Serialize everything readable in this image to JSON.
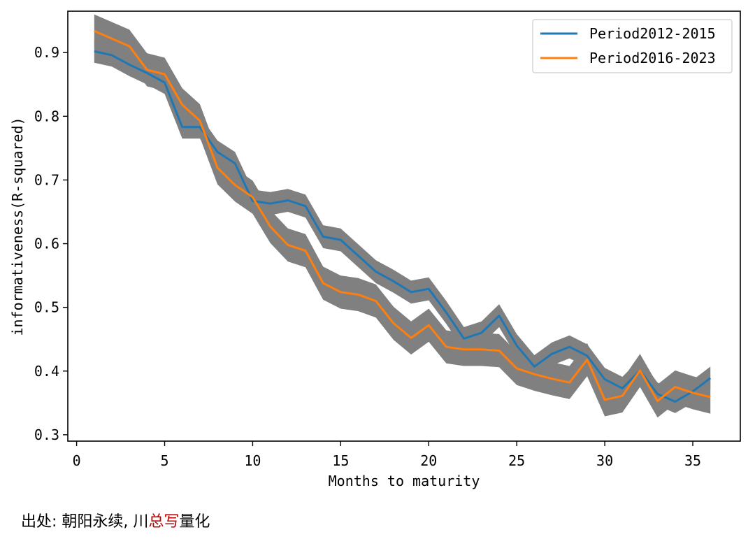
{
  "chart_data": {
    "type": "line",
    "xlabel": "Months to maturity",
    "ylabel": "informativeness(R-squared)",
    "xlim": [
      -0.5,
      37.7
    ],
    "ylim": [
      0.29,
      0.965
    ],
    "xticks": [
      0,
      5,
      10,
      15,
      20,
      25,
      30,
      35
    ],
    "yticks": [
      0.3,
      0.4,
      0.5,
      0.6,
      0.7,
      0.8,
      0.9
    ],
    "grid": false,
    "legend_position": "top-right",
    "band_color": "#808080",
    "series": [
      {
        "name": "Period2012-2015",
        "color": "#1f77b4",
        "x": [
          1,
          2,
          3,
          4,
          5,
          6,
          7,
          8,
          9,
          10,
          11,
          12,
          13,
          14,
          15,
          16,
          17,
          18,
          19,
          20,
          21,
          22,
          23,
          24,
          25,
          26,
          27,
          28,
          29,
          30,
          31,
          32,
          33,
          34,
          35,
          36
        ],
        "values": [
          0.902,
          0.896,
          0.881,
          0.868,
          0.853,
          0.783,
          0.783,
          0.744,
          0.726,
          0.667,
          0.663,
          0.668,
          0.659,
          0.611,
          0.606,
          0.581,
          0.556,
          0.541,
          0.524,
          0.529,
          0.492,
          0.451,
          0.46,
          0.487,
          0.44,
          0.407,
          0.427,
          0.438,
          0.424,
          0.387,
          0.373,
          0.401,
          0.364,
          0.352,
          0.368,
          0.389
        ],
        "band": 0.018
      },
      {
        "name": "Period2016-2023",
        "color": "#ff7f0e",
        "x": [
          1,
          2,
          3,
          4,
          5,
          6,
          7,
          8,
          9,
          10,
          11,
          12,
          13,
          14,
          15,
          16,
          17,
          18,
          19,
          20,
          21,
          22,
          23,
          24,
          25,
          26,
          27,
          28,
          29,
          30,
          31,
          32,
          33,
          34,
          35,
          36
        ],
        "values": [
          0.934,
          0.922,
          0.91,
          0.873,
          0.866,
          0.818,
          0.793,
          0.719,
          0.692,
          0.673,
          0.627,
          0.598,
          0.589,
          0.538,
          0.524,
          0.52,
          0.51,
          0.475,
          0.452,
          0.472,
          0.438,
          0.434,
          0.434,
          0.432,
          0.404,
          0.395,
          0.388,
          0.382,
          0.418,
          0.355,
          0.361,
          0.401,
          0.353,
          0.375,
          0.366,
          0.359
        ],
        "band": 0.026
      }
    ]
  },
  "source": {
    "prefix": "出处: 朝阳永续, 川",
    "highlight": "总写",
    "suffix": "量化",
    "highlight_color": "#c00000"
  }
}
